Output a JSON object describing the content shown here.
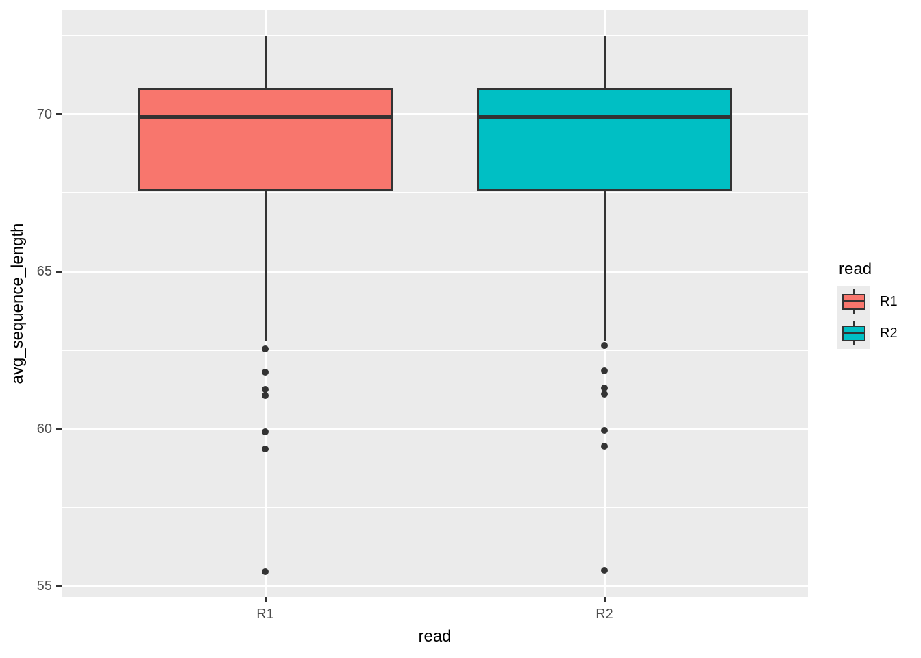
{
  "chart_data": {
    "type": "boxplot",
    "title": "",
    "xlabel": "read",
    "ylabel": "avg_sequence_length",
    "categories": [
      "R1",
      "R2"
    ],
    "y_ticks": [
      55,
      60,
      65,
      70
    ],
    "y_minor_ticks": [
      57.5,
      62.5,
      67.5,
      72.5
    ],
    "ylim": [
      54.65,
      73.33
    ],
    "grid": true,
    "legend": {
      "title": "read",
      "position": "right",
      "entries": [
        {
          "label": "R1",
          "color": "#F8766D"
        },
        {
          "label": "R2",
          "color": "#00BFC4"
        }
      ]
    },
    "series": [
      {
        "name": "R1",
        "color": "#F8766D",
        "whisker_high": 72.5,
        "q3": 70.85,
        "median": 69.9,
        "q1": 67.55,
        "whisker_low": 62.8,
        "outliers": [
          62.55,
          61.8,
          61.25,
          61.05,
          59.9,
          59.35,
          55.45
        ]
      },
      {
        "name": "R2",
        "color": "#00BFC4",
        "whisker_high": 72.5,
        "q3": 70.85,
        "median": 69.9,
        "q1": 67.55,
        "whisker_low": 62.8,
        "outliers": [
          62.65,
          61.85,
          61.3,
          61.1,
          59.95,
          59.45,
          55.5
        ]
      }
    ]
  },
  "colors": {
    "page_bg": "#FFFFFF",
    "panel_bg": "#EBEBEB",
    "gridline": "#FFFFFF",
    "box_outline": "#333333",
    "outlier_point": "#333333",
    "tick_text": "#4D4D4D",
    "title_text": "#000000",
    "legend_key_bg": "#EBEBEB"
  }
}
